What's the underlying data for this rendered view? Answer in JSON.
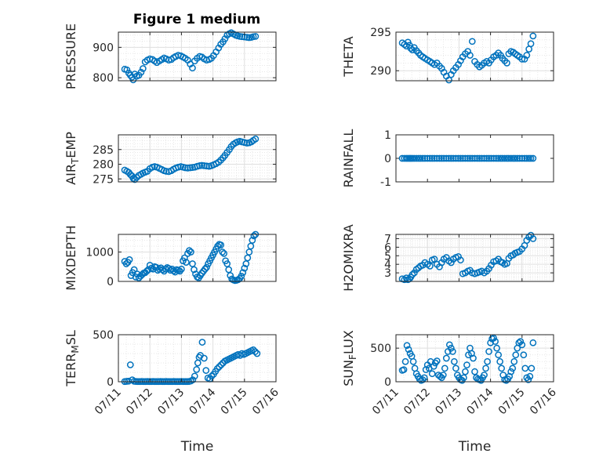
{
  "figure": {
    "title": "Figure 1 medium",
    "marker_color": "#0072BD",
    "axis_color": "#262626",
    "grid_color": "#dfdfdf"
  },
  "chart_data": [
    {
      "id": "pressure",
      "type": "scatter",
      "title": "Figure 1 medium",
      "xlabel": "",
      "ylabel": "PRESSURE",
      "xlim": [
        0,
        5
      ],
      "ylim": [
        790,
        950
      ],
      "yticks": [
        800,
        900
      ],
      "xtick_labels": [
        "07/11",
        "07/12",
        "07/13",
        "07/14",
        "07/15",
        "07/16"
      ],
      "show_x_tick_labels": false,
      "grid": true,
      "x_unit": "days since 07/11",
      "x": [
        0.2,
        0.27,
        0.33,
        0.38,
        0.43,
        0.47,
        0.52,
        0.58,
        0.65,
        0.72,
        0.78,
        0.85,
        0.92,
        1.0,
        1.08,
        1.15,
        1.22,
        1.3,
        1.38,
        1.45,
        1.52,
        1.6,
        1.68,
        1.75,
        1.82,
        1.9,
        1.98,
        2.05,
        2.12,
        2.2,
        2.28,
        2.35,
        2.42,
        2.5,
        2.58,
        2.65,
        2.72,
        2.8,
        2.88,
        2.95,
        3.02,
        3.1,
        3.18,
        3.25,
        3.32,
        3.38,
        3.45,
        3.52,
        3.58,
        3.65,
        3.72,
        3.78,
        3.85,
        3.92,
        4.0,
        4.08,
        4.15,
        4.22,
        4.28,
        4.35
      ],
      "y": [
        828,
        826,
        815,
        808,
        802,
        793,
        812,
        805,
        808,
        818,
        830,
        852,
        858,
        862,
        860,
        855,
        850,
        855,
        860,
        865,
        862,
        858,
        860,
        866,
        870,
        874,
        872,
        868,
        864,
        858,
        845,
        832,
        855,
        864,
        870,
        868,
        862,
        858,
        860,
        864,
        873,
        885,
        898,
        910,
        918,
        928,
        940,
        945,
        948,
        944,
        940,
        938,
        936,
        935,
        934,
        933,
        932,
        933,
        935,
        936
      ]
    },
    {
      "id": "theta",
      "type": "scatter",
      "xlabel": "",
      "ylabel": "THETA",
      "xlim": [
        0,
        5
      ],
      "ylim": [
        288.7,
        295
      ],
      "yticks": [
        290,
        295
      ],
      "xtick_labels": [
        "07/11",
        "07/12",
        "07/13",
        "07/14",
        "07/15",
        "07/16"
      ],
      "show_x_tick_labels": false,
      "grid": true,
      "x": [
        0.2,
        0.27,
        0.33,
        0.38,
        0.43,
        0.47,
        0.52,
        0.58,
        0.65,
        0.72,
        0.78,
        0.85,
        0.92,
        1.0,
        1.08,
        1.15,
        1.22,
        1.3,
        1.38,
        1.45,
        1.52,
        1.6,
        1.68,
        1.75,
        1.82,
        1.9,
        1.98,
        2.05,
        2.12,
        2.2,
        2.28,
        2.35,
        2.42,
        2.5,
        2.58,
        2.65,
        2.72,
        2.8,
        2.88,
        2.95,
        3.02,
        3.1,
        3.18,
        3.25,
        3.32,
        3.38,
        3.45,
        3.52,
        3.58,
        3.65,
        3.72,
        3.78,
        3.85,
        3.92,
        4.0,
        4.08,
        4.15,
        4.22,
        4.28,
        4.35
      ],
      "y": [
        293.6,
        293.4,
        293.2,
        293.7,
        293.3,
        292.9,
        292.7,
        293.0,
        292.6,
        292.3,
        292.0,
        291.8,
        291.6,
        291.4,
        291.2,
        291.0,
        290.8,
        291.0,
        290.6,
        290.3,
        289.8,
        289.3,
        288.8,
        289.5,
        290.0,
        290.4,
        290.8,
        291.3,
        291.8,
        292.2,
        292.5,
        292.0,
        293.8,
        291.2,
        290.8,
        290.5,
        290.7,
        291.0,
        291.2,
        291.0,
        291.4,
        291.8,
        292.0,
        292.3,
        292.0,
        291.6,
        291.3,
        291.0,
        292.2,
        292.5,
        292.4,
        292.2,
        292.0,
        291.8,
        291.5,
        291.5,
        292.0,
        292.8,
        293.5,
        294.5
      ]
    },
    {
      "id": "air_temp",
      "type": "scatter",
      "xlabel": "",
      "ylabel": "AIR_TEMP",
      "xlim": [
        0,
        5
      ],
      "ylim": [
        274,
        290
      ],
      "yticks": [
        275,
        280,
        285
      ],
      "xtick_labels": [
        "07/11",
        "07/12",
        "07/13",
        "07/14",
        "07/15",
        "07/16"
      ],
      "show_x_tick_labels": false,
      "grid": true,
      "x": [
        0.2,
        0.27,
        0.33,
        0.38,
        0.43,
        0.47,
        0.52,
        0.58,
        0.65,
        0.72,
        0.78,
        0.85,
        0.92,
        1.0,
        1.08,
        1.15,
        1.22,
        1.3,
        1.38,
        1.45,
        1.52,
        1.6,
        1.68,
        1.75,
        1.82,
        1.9,
        1.98,
        2.05,
        2.12,
        2.2,
        2.28,
        2.35,
        2.42,
        2.5,
        2.58,
        2.65,
        2.72,
        2.8,
        2.88,
        2.95,
        3.02,
        3.1,
        3.18,
        3.25,
        3.32,
        3.38,
        3.45,
        3.52,
        3.58,
        3.65,
        3.72,
        3.78,
        3.85,
        3.92,
        4.0,
        4.08,
        4.15,
        4.22,
        4.28,
        4.35
      ],
      "y": [
        278,
        277.6,
        277.2,
        276.5,
        276.0,
        275.2,
        274.8,
        275.5,
        276.2,
        276.6,
        277.0,
        277.3,
        277.6,
        278.5,
        279.0,
        279.2,
        279.0,
        278.6,
        278.2,
        277.8,
        277.6,
        277.5,
        277.8,
        278.3,
        278.7,
        279.0,
        279.2,
        279.0,
        278.8,
        278.7,
        278.8,
        278.9,
        279.0,
        279.3,
        279.5,
        279.6,
        279.5,
        279.4,
        279.3,
        279.5,
        279.8,
        280.2,
        280.7,
        281.4,
        282.2,
        283.0,
        284.0,
        285.0,
        286.0,
        286.8,
        287.3,
        287.6,
        287.8,
        287.6,
        287.4,
        287.2,
        287.3,
        287.6,
        288.1,
        288.6
      ]
    },
    {
      "id": "rainfall",
      "type": "scatter",
      "xlabel": "",
      "ylabel": "RAINFALL",
      "xlim": [
        0,
        5
      ],
      "ylim": [
        -1,
        1
      ],
      "yticks": [
        -1,
        0,
        1
      ],
      "xtick_labels": [
        "07/11",
        "07/12",
        "07/13",
        "07/14",
        "07/15",
        "07/16"
      ],
      "show_x_tick_labels": false,
      "grid": false,
      "x": [
        0.2,
        0.27,
        0.33,
        0.38,
        0.43,
        0.47,
        0.52,
        0.58,
        0.65,
        0.72,
        0.78,
        0.85,
        0.92,
        1.0,
        1.08,
        1.15,
        1.22,
        1.3,
        1.38,
        1.45,
        1.52,
        1.6,
        1.68,
        1.75,
        1.82,
        1.9,
        1.98,
        2.05,
        2.12,
        2.2,
        2.28,
        2.35,
        2.42,
        2.5,
        2.58,
        2.65,
        2.72,
        2.8,
        2.88,
        2.95,
        3.02,
        3.1,
        3.18,
        3.25,
        3.32,
        3.38,
        3.45,
        3.52,
        3.58,
        3.65,
        3.72,
        3.78,
        3.85,
        3.92,
        4.0,
        4.08,
        4.15,
        4.22,
        4.28,
        4.35
      ],
      "y": [
        0,
        0,
        0,
        0,
        0,
        0,
        0,
        0,
        0,
        0,
        0,
        0,
        0,
        0,
        0,
        0,
        0,
        0,
        0,
        0,
        0,
        0,
        0,
        0,
        0,
        0,
        0,
        0,
        0,
        0,
        0,
        0,
        0,
        0,
        0,
        0,
        0,
        0,
        0,
        0,
        0,
        0,
        0,
        0,
        0,
        0,
        0,
        0,
        0,
        0,
        0,
        0,
        0,
        0,
        0,
        0,
        0,
        0,
        0,
        0
      ]
    },
    {
      "id": "mixdepth",
      "type": "scatter",
      "xlabel": "",
      "ylabel": "MIXDEPTH",
      "xlim": [
        0,
        5
      ],
      "ylim": [
        0,
        1600
      ],
      "yticks": [
        0,
        1000
      ],
      "xtick_labels": [
        "07/11",
        "07/12",
        "07/13",
        "07/14",
        "07/15",
        "07/16"
      ],
      "show_x_tick_labels": false,
      "grid": true,
      "x": [
        0.2,
        0.25,
        0.3,
        0.35,
        0.4,
        0.45,
        0.5,
        0.55,
        0.6,
        0.65,
        0.7,
        0.75,
        0.8,
        0.85,
        0.9,
        0.95,
        1.0,
        1.05,
        1.1,
        1.15,
        1.2,
        1.25,
        1.3,
        1.35,
        1.4,
        1.45,
        1.5,
        1.55,
        1.6,
        1.65,
        1.7,
        1.75,
        1.8,
        1.85,
        1.9,
        1.95,
        2.0,
        2.05,
        2.1,
        2.15,
        2.2,
        2.25,
        2.3,
        2.35,
        2.4,
        2.45,
        2.5,
        2.55,
        2.6,
        2.65,
        2.7,
        2.75,
        2.8,
        2.85,
        2.9,
        2.95,
        3.0,
        3.05,
        3.1,
        3.15,
        3.2,
        3.25,
        3.3,
        3.35,
        3.4,
        3.45,
        3.5,
        3.55,
        3.6,
        3.65,
        3.7,
        3.75,
        3.8,
        3.85,
        3.9,
        3.95,
        4.0,
        4.05,
        4.1,
        4.15,
        4.2,
        4.25,
        4.3,
        4.35
      ],
      "y": [
        680,
        600,
        650,
        740,
        200,
        300,
        400,
        150,
        250,
        120,
        180,
        230,
        280,
        300,
        350,
        400,
        550,
        450,
        420,
        500,
        480,
        380,
        420,
        460,
        400,
        350,
        420,
        470,
        440,
        380,
        420,
        360,
        320,
        400,
        380,
        350,
        420,
        700,
        800,
        650,
        950,
        1050,
        1000,
        600,
        400,
        250,
        150,
        120,
        200,
        280,
        350,
        420,
        480,
        600,
        700,
        800,
        900,
        1000,
        1100,
        1200,
        1260,
        1240,
        1000,
        950,
        700,
        600,
        400,
        200,
        80,
        50,
        30,
        40,
        60,
        100,
        180,
        300,
        450,
        600,
        800,
        1000,
        1200,
        1400,
        1550,
        1600
      ]
    },
    {
      "id": "h2omixra",
      "type": "scatter",
      "xlabel": "",
      "ylabel": "H2OMIXRA",
      "xlim": [
        0,
        5
      ],
      "ylim": [
        2,
        7.5
      ],
      "yticks": [
        3,
        4,
        5,
        6,
        7
      ],
      "xtick_labels": [
        "07/11",
        "07/12",
        "07/13",
        "07/14",
        "07/15",
        "07/16"
      ],
      "show_x_tick_labels": false,
      "grid": true,
      "x": [
        0.2,
        0.27,
        0.33,
        0.38,
        0.43,
        0.47,
        0.52,
        0.58,
        0.65,
        0.72,
        0.78,
        0.85,
        0.92,
        1.0,
        1.08,
        1.15,
        1.22,
        1.3,
        1.38,
        1.45,
        1.52,
        1.6,
        1.68,
        1.75,
        1.82,
        1.9,
        1.98,
        2.05,
        2.12,
        2.2,
        2.28,
        2.35,
        2.42,
        2.5,
        2.58,
        2.65,
        2.72,
        2.8,
        2.88,
        2.95,
        3.02,
        3.1,
        3.18,
        3.25,
        3.32,
        3.38,
        3.45,
        3.52,
        3.58,
        3.65,
        3.72,
        3.78,
        3.85,
        3.92,
        4.0,
        4.08,
        4.15,
        4.22,
        4.28,
        4.35
      ],
      "y": [
        2.3,
        2.2,
        2.4,
        2.2,
        2.3,
        2.5,
        2.8,
        3.0,
        3.4,
        3.6,
        3.8,
        3.9,
        4.2,
        4.0,
        3.8,
        4.5,
        4.6,
        4.0,
        3.7,
        4.2,
        4.6,
        4.8,
        4.4,
        4.2,
        4.6,
        4.8,
        4.9,
        4.5,
        2.9,
        3.0,
        3.2,
        3.3,
        3.0,
        2.9,
        3.0,
        3.1,
        3.2,
        3.0,
        3.2,
        3.5,
        3.9,
        4.3,
        4.4,
        4.6,
        4.3,
        4.2,
        4.0,
        4.1,
        4.7,
        5.0,
        5.1,
        5.3,
        5.4,
        5.5,
        5.8,
        6.2,
        6.8,
        7.2,
        7.4,
        7.0
      ]
    },
    {
      "id": "terr_msl",
      "type": "scatter",
      "xlabel": "Time",
      "ylabel": "TERR_MSL",
      "xlim": [
        0,
        5
      ],
      "ylim": [
        0,
        500
      ],
      "yticks": [
        0,
        500
      ],
      "xtick_labels": [
        "07/11",
        "07/12",
        "07/13",
        "07/14",
        "07/15",
        "07/16"
      ],
      "show_x_tick_labels": true,
      "grid": true,
      "x": [
        0.2,
        0.26,
        0.32,
        0.38,
        0.44,
        0.5,
        0.56,
        0.62,
        0.68,
        0.74,
        0.8,
        0.86,
        0.92,
        0.98,
        1.04,
        1.1,
        1.16,
        1.22,
        1.28,
        1.34,
        1.4,
        1.46,
        1.52,
        1.58,
        1.64,
        1.7,
        1.76,
        1.82,
        1.88,
        1.94,
        2.0,
        2.06,
        2.12,
        2.18,
        2.24,
        2.3,
        2.36,
        2.42,
        2.48,
        2.52,
        2.56,
        2.6,
        2.66,
        2.72,
        2.78,
        2.84,
        2.9,
        2.96,
        3.02,
        3.08,
        3.14,
        3.2,
        3.26,
        3.32,
        3.38,
        3.44,
        3.5,
        3.56,
        3.62,
        3.68,
        3.74,
        3.8,
        3.86,
        3.92,
        3.98,
        4.04,
        4.1,
        4.16,
        4.22,
        4.28,
        4.34,
        4.4
      ],
      "y": [
        2,
        4,
        6,
        180,
        20,
        5,
        3,
        2,
        2,
        3,
        2,
        2,
        3,
        2,
        2,
        3,
        2,
        2,
        2,
        3,
        2,
        2,
        3,
        2,
        2,
        2,
        3,
        2,
        2,
        2,
        3,
        2,
        2,
        2,
        3,
        8,
        20,
        60,
        130,
        200,
        260,
        280,
        420,
        250,
        120,
        40,
        30,
        60,
        80,
        110,
        140,
        160,
        180,
        200,
        220,
        230,
        240,
        250,
        260,
        270,
        280,
        290,
        280,
        300,
        290,
        300,
        310,
        320,
        330,
        340,
        320,
        300
      ]
    },
    {
      "id": "sun_flux",
      "type": "scatter",
      "xlabel": "Time",
      "ylabel": "SUN_FLUX",
      "xlim": [
        0,
        5
      ],
      "ylim": [
        0,
        700
      ],
      "yticks": [
        0,
        500
      ],
      "xtick_labels": [
        "07/11",
        "07/12",
        "07/13",
        "07/14",
        "07/15",
        "07/16"
      ],
      "show_x_tick_labels": true,
      "grid": true,
      "x": [
        0.2,
        0.25,
        0.3,
        0.35,
        0.4,
        0.45,
        0.5,
        0.55,
        0.6,
        0.65,
        0.7,
        0.75,
        0.8,
        0.85,
        0.9,
        0.95,
        1.0,
        1.05,
        1.1,
        1.15,
        1.2,
        1.25,
        1.3,
        1.35,
        1.4,
        1.45,
        1.5,
        1.55,
        1.6,
        1.65,
        1.7,
        1.75,
        1.8,
        1.85,
        1.9,
        1.95,
        2.0,
        2.05,
        2.1,
        2.15,
        2.2,
        2.25,
        2.3,
        2.35,
        2.4,
        2.45,
        2.5,
        2.55,
        2.6,
        2.65,
        2.7,
        2.75,
        2.8,
        2.85,
        2.9,
        2.95,
        3.0,
        3.05,
        3.1,
        3.15,
        3.2,
        3.25,
        3.3,
        3.35,
        3.4,
        3.45,
        3.5,
        3.55,
        3.6,
        3.65,
        3.7,
        3.75,
        3.8,
        3.85,
        3.9,
        3.95,
        4.0,
        4.05,
        4.1,
        4.15,
        4.2,
        4.25,
        4.3,
        4.35
      ],
      "y": [
        170,
        180,
        300,
        540,
        480,
        420,
        380,
        300,
        200,
        120,
        80,
        40,
        20,
        30,
        60,
        180,
        250,
        200,
        300,
        120,
        230,
        280,
        310,
        100,
        80,
        60,
        100,
        200,
        350,
        450,
        550,
        500,
        450,
        300,
        200,
        100,
        60,
        30,
        20,
        60,
        150,
        250,
        400,
        500,
        420,
        350,
        150,
        60,
        40,
        30,
        20,
        60,
        100,
        200,
        300,
        450,
        580,
        640,
        650,
        600,
        500,
        400,
        300,
        200,
        100,
        30,
        20,
        40,
        80,
        150,
        200,
        300,
        400,
        500,
        580,
        600,
        550,
        400,
        200,
        60,
        30,
        80,
        200,
        580
      ]
    }
  ]
}
